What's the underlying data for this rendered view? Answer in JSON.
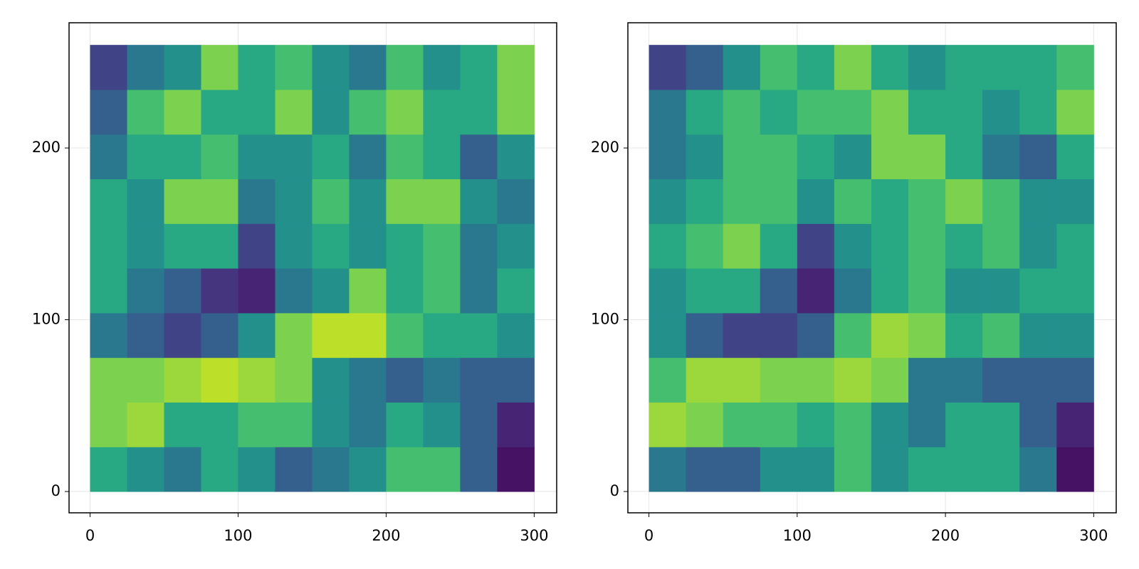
{
  "chart_data": [
    {
      "type": "heatmap",
      "colormap": "viridis",
      "grid": true,
      "x": [
        0,
        25,
        50,
        75,
        100,
        125,
        150,
        175,
        200,
        225,
        250,
        275,
        300
      ],
      "y": [
        0,
        26,
        52,
        78,
        104,
        130,
        156,
        182,
        208,
        234,
        260
      ],
      "z": [
        [
          0.6,
          0.5,
          0.4,
          0.6,
          0.5,
          0.3,
          0.4,
          0.5,
          0.7,
          0.7,
          0.3,
          0.05
        ],
        [
          0.8,
          0.85,
          0.6,
          0.6,
          0.7,
          0.7,
          0.5,
          0.4,
          0.6,
          0.5,
          0.3,
          0.1
        ],
        [
          0.8,
          0.8,
          0.85,
          0.9,
          0.85,
          0.8,
          0.5,
          0.4,
          0.3,
          0.4,
          0.3,
          0.3
        ],
        [
          0.4,
          0.3,
          0.2,
          0.3,
          0.5,
          0.8,
          0.9,
          0.9,
          0.7,
          0.6,
          0.6,
          0.5
        ],
        [
          0.6,
          0.4,
          0.3,
          0.15,
          0.1,
          0.4,
          0.5,
          0.8,
          0.6,
          0.7,
          0.4,
          0.6
        ],
        [
          0.6,
          0.5,
          0.6,
          0.6,
          0.2,
          0.5,
          0.6,
          0.5,
          0.6,
          0.7,
          0.4,
          0.5
        ],
        [
          0.6,
          0.5,
          0.8,
          0.8,
          0.4,
          0.5,
          0.7,
          0.5,
          0.8,
          0.8,
          0.5,
          0.4
        ],
        [
          0.4,
          0.6,
          0.6,
          0.7,
          0.5,
          0.5,
          0.6,
          0.4,
          0.7,
          0.6,
          0.3,
          0.5
        ],
        [
          0.3,
          0.7,
          0.8,
          0.6,
          0.6,
          0.8,
          0.5,
          0.7,
          0.8,
          0.6,
          0.6,
          0.8
        ],
        [
          0.2,
          0.4,
          0.5,
          0.8,
          0.6,
          0.7,
          0.5,
          0.4,
          0.7,
          0.5,
          0.6,
          0.8
        ]
      ],
      "xlim": [
        -14.2,
        315.2
      ],
      "ylim": [
        -12.4,
        272.9
      ],
      "xticks": [
        0,
        100,
        200,
        300
      ],
      "yticks": [
        0,
        100,
        200
      ]
    },
    {
      "type": "heatmap",
      "colormap": "viridis",
      "grid": true,
      "x": [
        0,
        25,
        50,
        75,
        100,
        125,
        150,
        175,
        200,
        225,
        250,
        275,
        300
      ],
      "y": [
        0,
        26,
        52,
        78,
        104,
        130,
        156,
        182,
        208,
        234,
        260
      ],
      "z": [
        [
          0.4,
          0.3,
          0.3,
          0.5,
          0.5,
          0.7,
          0.5,
          0.6,
          0.6,
          0.6,
          0.4,
          0.05
        ],
        [
          0.85,
          0.8,
          0.7,
          0.7,
          0.6,
          0.7,
          0.5,
          0.4,
          0.6,
          0.6,
          0.3,
          0.1
        ],
        [
          0.7,
          0.85,
          0.85,
          0.8,
          0.8,
          0.85,
          0.8,
          0.4,
          0.4,
          0.3,
          0.3,
          0.3
        ],
        [
          0.5,
          0.3,
          0.2,
          0.2,
          0.3,
          0.7,
          0.85,
          0.8,
          0.6,
          0.7,
          0.5,
          0.5
        ],
        [
          0.5,
          0.6,
          0.6,
          0.3,
          0.1,
          0.4,
          0.6,
          0.7,
          0.5,
          0.5,
          0.6,
          0.6
        ],
        [
          0.6,
          0.7,
          0.8,
          0.6,
          0.2,
          0.5,
          0.6,
          0.7,
          0.6,
          0.7,
          0.5,
          0.6
        ],
        [
          0.5,
          0.6,
          0.7,
          0.7,
          0.5,
          0.7,
          0.6,
          0.7,
          0.8,
          0.7,
          0.5,
          0.5
        ],
        [
          0.4,
          0.5,
          0.7,
          0.7,
          0.6,
          0.5,
          0.8,
          0.8,
          0.6,
          0.4,
          0.3,
          0.6
        ],
        [
          0.4,
          0.6,
          0.7,
          0.6,
          0.7,
          0.7,
          0.8,
          0.6,
          0.6,
          0.5,
          0.6,
          0.8
        ],
        [
          0.2,
          0.3,
          0.5,
          0.7,
          0.6,
          0.8,
          0.6,
          0.5,
          0.6,
          0.6,
          0.6,
          0.7
        ]
      ],
      "xlim": [
        -14.2,
        315.2
      ],
      "ylim": [
        -12.4,
        272.9
      ],
      "xticks": [
        0,
        100,
        200,
        300
      ],
      "yticks": [
        0,
        100,
        200
      ]
    }
  ]
}
